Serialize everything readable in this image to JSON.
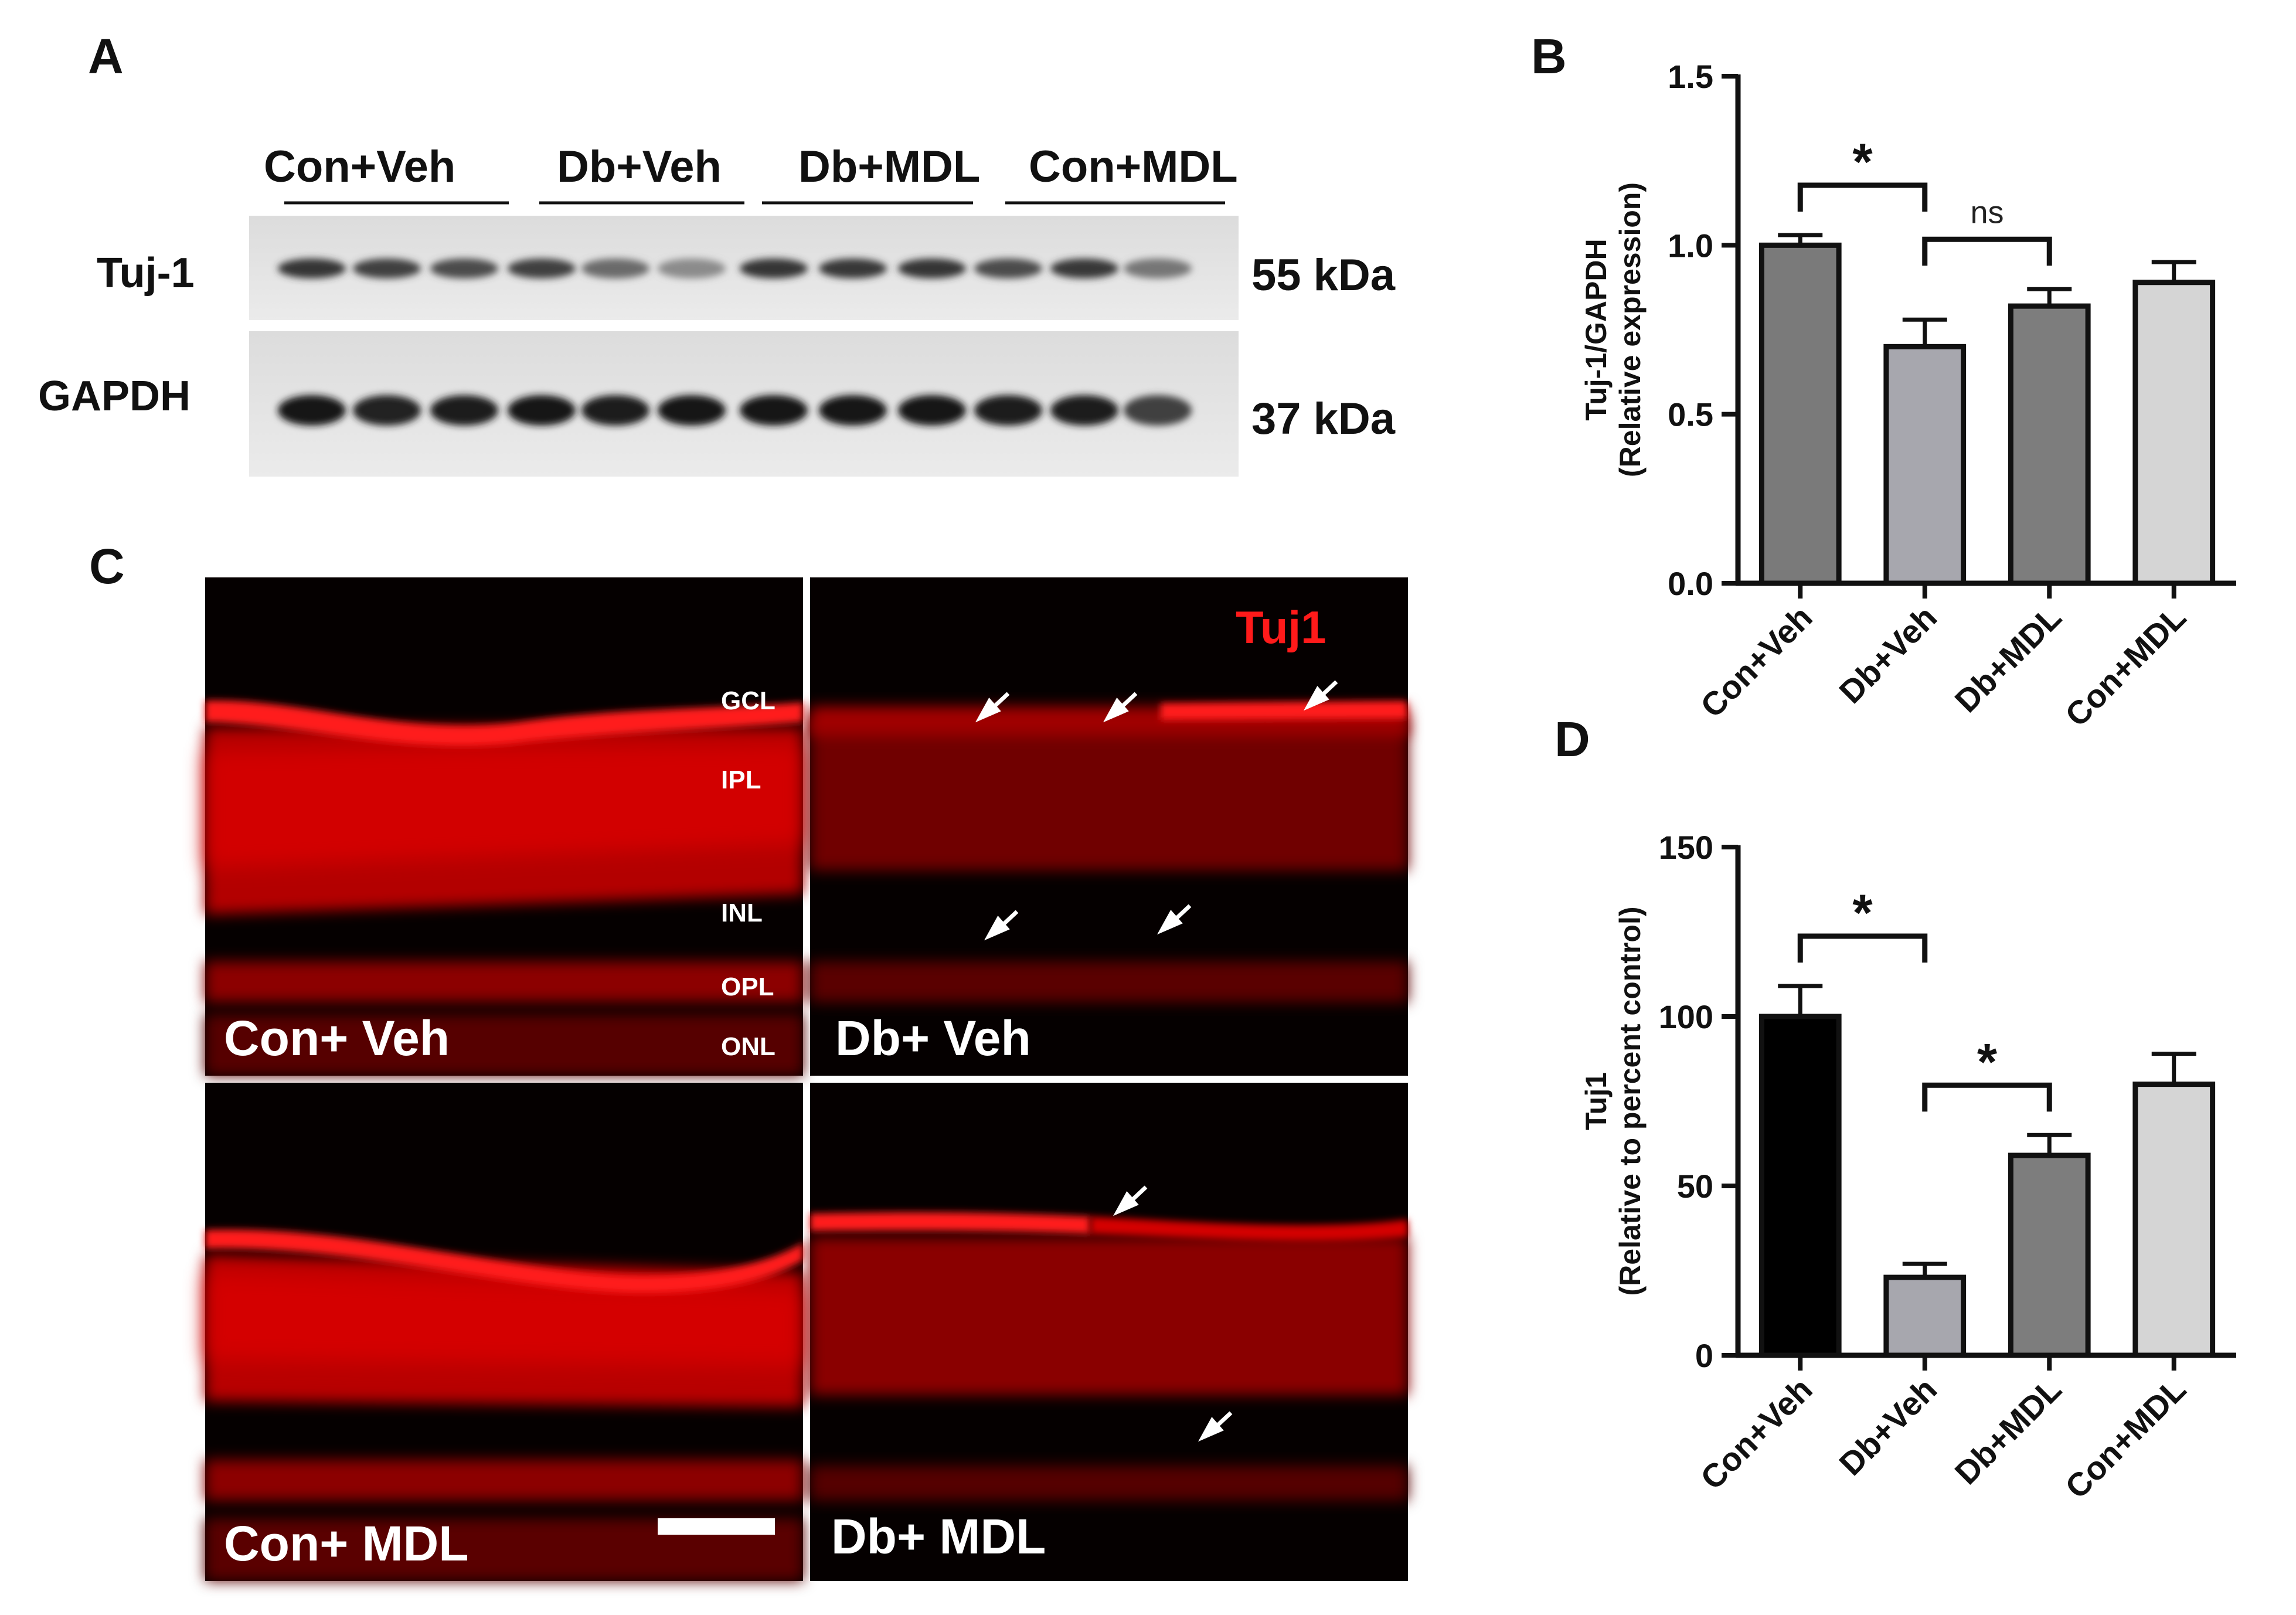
{
  "panels": {
    "a": {
      "label": "A",
      "groups": [
        "Con+Veh",
        "Db+Veh",
        "Db+MDL",
        "Con+MDL"
      ],
      "rows": [
        {
          "name": "Tuj-1",
          "size": "55 kDa",
          "intensity": [
            0.8,
            0.75,
            0.7,
            0.75,
            0.55,
            0.4,
            0.8,
            0.78,
            0.8,
            0.7,
            0.78,
            0.5
          ]
        },
        {
          "name": "GAPDH",
          "size": "37 kDa",
          "intensity": [
            0.95,
            0.9,
            0.92,
            0.95,
            0.92,
            0.95,
            0.95,
            0.93,
            0.95,
            0.92,
            0.92,
            0.75
          ]
        }
      ]
    },
    "c": {
      "label": "C",
      "stain": "Tuj1",
      "layers": [
        "GCL",
        "IPL",
        "INL",
        "OPL",
        "ONL"
      ],
      "images": [
        "Con+ Veh",
        "Db+ Veh",
        "Con+ MDL",
        "Db+ MDL"
      ]
    }
  },
  "chart_data": [
    {
      "panel": "B",
      "type": "bar",
      "categories": [
        "Con+Veh",
        "Db+Veh",
        "Db+MDL",
        "Con+MDL"
      ],
      "values": [
        1.0,
        0.7,
        0.82,
        0.89
      ],
      "errors": [
        0.03,
        0.08,
        0.05,
        0.06
      ],
      "colors": [
        "#7a7a7a",
        "#a7a7ae",
        "#7d7d7d",
        "#d5d5d5"
      ],
      "ylabel_lines": [
        "Tuj-1/GAPDH",
        "(Relative expression)"
      ],
      "ylim": [
        0,
        1.5
      ],
      "yticks": [
        "0.0",
        "0.5",
        "1.0",
        "1.5"
      ],
      "annotations": [
        {
          "from": 0,
          "to": 1,
          "text": "*"
        },
        {
          "from": 1,
          "to": 2,
          "text": "ns"
        }
      ]
    },
    {
      "panel": "D",
      "type": "bar",
      "categories": [
        "Con+Veh",
        "Db+Veh",
        "Db+MDL",
        "Con+MDL"
      ],
      "values": [
        100,
        23,
        59,
        80
      ],
      "errors": [
        9,
        4,
        6,
        9
      ],
      "colors": [
        "#000000",
        "#a7a7ae",
        "#7d7d7d",
        "#d5d5d5"
      ],
      "ylabel_lines": [
        "Tuj1",
        "(Relative to percent control)"
      ],
      "ylim": [
        0,
        150
      ],
      "yticks": [
        "0",
        "50",
        "100",
        "150"
      ],
      "annotations": [
        {
          "from": 0,
          "to": 1,
          "text": "*"
        },
        {
          "from": 1,
          "to": 2,
          "text": "*"
        }
      ]
    }
  ]
}
